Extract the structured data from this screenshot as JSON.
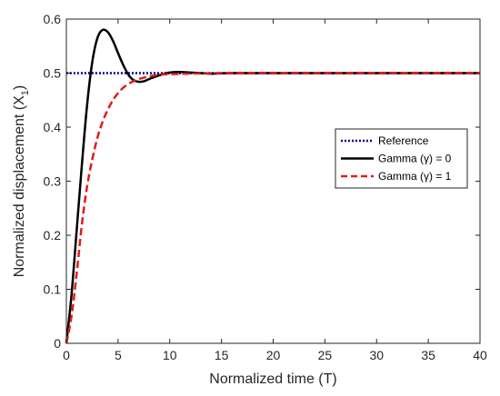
{
  "chart_data": {
    "type": "line",
    "title": "",
    "xlabel": "Normalized time (T)",
    "ylabel_main": "Normalized displacement (X",
    "ylabel_sub": "1",
    "ylabel_end": ")",
    "xlim": [
      0,
      40
    ],
    "ylim": [
      0,
      0.6
    ],
    "xticks": [
      0,
      5,
      10,
      15,
      20,
      25,
      30,
      35,
      40
    ],
    "yticks": [
      0,
      0.1,
      0.2,
      0.3,
      0.4,
      0.5,
      0.6
    ],
    "ytick_labels": [
      "0",
      "0.1",
      "0.2",
      "0.3",
      "0.4",
      "0.5",
      "0.6"
    ],
    "grid": false,
    "legend_position": "center-right",
    "series": [
      {
        "name": "Reference",
        "style": "dotted",
        "color": "#00008b",
        "x": [
          0,
          40
        ],
        "y": [
          0.5,
          0.5
        ]
      },
      {
        "name": "Gamma (γ) = 0",
        "style": "solid",
        "color": "#000000",
        "x": [
          0,
          0.5,
          1,
          1.5,
          2,
          2.5,
          3,
          3.5,
          4,
          4.5,
          5,
          5.5,
          6,
          6.5,
          7,
          7.5,
          8,
          9,
          10,
          11,
          12,
          13,
          14,
          16,
          20,
          25,
          30,
          35,
          40
        ],
        "y": [
          0,
          0.09,
          0.21,
          0.33,
          0.44,
          0.52,
          0.565,
          0.58,
          0.576,
          0.56,
          0.537,
          0.515,
          0.497,
          0.487,
          0.484,
          0.485,
          0.489,
          0.496,
          0.501,
          0.502,
          0.501,
          0.5,
          0.499,
          0.5,
          0.5,
          0.5,
          0.5,
          0.5,
          0.5
        ]
      },
      {
        "name": "Gamma (γ) = 1",
        "style": "dashed",
        "color": "#e31a1c",
        "x": [
          0,
          0.5,
          1,
          1.5,
          2,
          2.5,
          3,
          3.5,
          4,
          4.5,
          5,
          5.5,
          6,
          6.5,
          7,
          8,
          9,
          10,
          12,
          15,
          20,
          25,
          30,
          35,
          40
        ],
        "y": [
          0,
          0.05,
          0.13,
          0.22,
          0.29,
          0.34,
          0.38,
          0.41,
          0.432,
          0.45,
          0.463,
          0.473,
          0.48,
          0.485,
          0.489,
          0.494,
          0.497,
          0.498,
          0.499,
          0.5,
          0.5,
          0.5,
          0.5,
          0.5,
          0.5
        ]
      }
    ]
  },
  "legend": {
    "items": [
      {
        "label": "Reference"
      },
      {
        "label": "Gamma (γ) = 0"
      },
      {
        "label": "Gamma (γ) = 1"
      }
    ]
  }
}
